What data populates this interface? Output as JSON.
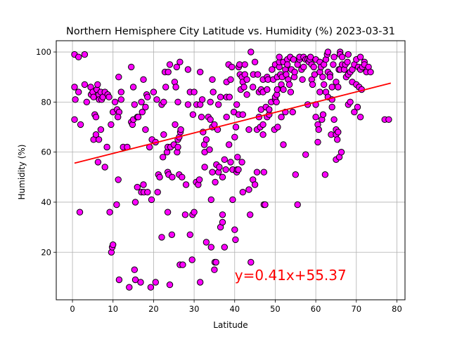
{
  "chart_data": {
    "type": "scatter",
    "title": "Northern Hemisphere City Latitude vs. Humidity (%) 2023-03-31",
    "xlabel": "Latitude",
    "ylabel": "Humidity (%)",
    "xlim": [
      -4,
      82
    ],
    "ylim": [
      1,
      104.5
    ],
    "xticks": [
      0,
      10,
      20,
      30,
      40,
      50,
      60,
      70,
      80
    ],
    "yticks": [
      20,
      40,
      60,
      80,
      100
    ],
    "grid": true,
    "colors": {
      "marker_fill": "#ff00ff",
      "marker_edge": "#000000",
      "regression": "#ff0000"
    },
    "regression": {
      "slope": 0.41,
      "intercept": 55.37,
      "x_range": [
        0.5,
        78.5
      ],
      "equation_text": "y=0.41x+55.37",
      "label_position_data": [
        40,
        10.5
      ]
    },
    "points": [
      [
        0.5,
        99
      ],
      [
        1.5,
        98
      ],
      [
        3,
        99
      ],
      [
        0.5,
        86
      ],
      [
        1.5,
        84
      ],
      [
        0.7,
        81
      ],
      [
        0.5,
        73
      ],
      [
        2,
        71
      ],
      [
        1.8,
        36
      ],
      [
        3,
        87
      ],
      [
        3.5,
        80
      ],
      [
        4.5,
        86
      ],
      [
        4.6,
        83
      ],
      [
        5,
        84
      ],
      [
        5.2,
        82
      ],
      [
        5.5,
        75
      ],
      [
        5.8,
        74
      ],
      [
        6,
        85
      ],
      [
        6.2,
        87
      ],
      [
        6.5,
        83
      ],
      [
        6.6,
        81
      ],
      [
        7,
        84
      ],
      [
        7.2,
        81
      ],
      [
        7.5,
        82
      ],
      [
        5.2,
        65
      ],
      [
        5.8,
        67
      ],
      [
        6.5,
        65
      ],
      [
        6.3,
        56
      ],
      [
        7,
        69
      ],
      [
        8,
        54
      ],
      [
        8.5,
        62
      ],
      [
        8,
        84
      ],
      [
        8.7,
        83
      ],
      [
        9.5,
        71
      ],
      [
        9,
        82
      ],
      [
        9.2,
        36
      ],
      [
        9.6,
        20
      ],
      [
        9.8,
        22
      ],
      [
        10,
        23
      ],
      [
        10,
        76
      ],
      [
        10.5,
        80
      ],
      [
        11,
        77
      ],
      [
        10.9,
        39
      ],
      [
        11.5,
        76
      ],
      [
        11.4,
        90
      ],
      [
        11.2,
        74
      ],
      [
        11.3,
        49
      ],
      [
        11.5,
        9
      ],
      [
        12,
        81
      ],
      [
        12,
        84
      ],
      [
        12.5,
        62
      ],
      [
        13.5,
        62
      ],
      [
        14,
        6
      ],
      [
        14.5,
        94
      ],
      [
        14.5,
        72
      ],
      [
        14.8,
        71
      ],
      [
        15,
        73
      ],
      [
        15,
        86
      ],
      [
        15.3,
        79
      ],
      [
        15.3,
        13
      ],
      [
        15.5,
        9
      ],
      [
        15.5,
        40
      ],
      [
        16,
        46
      ],
      [
        16,
        74
      ],
      [
        16.2,
        74
      ],
      [
        16.8,
        8
      ],
      [
        17,
        80
      ],
      [
        17.2,
        76
      ],
      [
        17.5,
        89
      ],
      [
        17,
        44
      ],
      [
        17.6,
        44
      ],
      [
        17.5,
        47
      ],
      [
        18,
        78
      ],
      [
        18,
        69
      ],
      [
        18.3,
        83
      ],
      [
        18.5,
        82
      ],
      [
        18.5,
        44
      ],
      [
        19,
        62
      ],
      [
        19.3,
        6
      ],
      [
        19.5,
        41
      ],
      [
        19.6,
        65
      ],
      [
        20,
        84
      ],
      [
        20.5,
        64
      ],
      [
        20.8,
        81
      ],
      [
        20.5,
        8
      ],
      [
        21,
        44
      ],
      [
        21.2,
        51
      ],
      [
        21.5,
        50
      ],
      [
        22,
        79
      ],
      [
        22,
        26
      ],
      [
        22.3,
        58
      ],
      [
        22.5,
        67
      ],
      [
        22.5,
        80
      ],
      [
        22.8,
        92
      ],
      [
        23,
        86
      ],
      [
        23.3,
        60
      ],
      [
        23.5,
        62
      ],
      [
        23.6,
        92
      ],
      [
        23.5,
        52
      ],
      [
        23.7,
        51
      ],
      [
        23.5,
        36
      ],
      [
        24,
        7
      ],
      [
        24,
        95
      ],
      [
        24.2,
        62
      ],
      [
        24.5,
        27
      ],
      [
        24.6,
        50
      ],
      [
        25,
        63
      ],
      [
        25.2,
        88
      ],
      [
        25.3,
        71
      ],
      [
        25.8,
        60
      ],
      [
        25.5,
        86
      ],
      [
        25.7,
        94
      ],
      [
        26,
        80
      ],
      [
        26,
        65
      ],
      [
        26.3,
        51
      ],
      [
        26.3,
        66
      ],
      [
        26,
        62
      ],
      [
        26.5,
        96
      ],
      [
        26.6,
        68
      ],
      [
        26.7,
        69
      ],
      [
        27,
        50
      ],
      [
        26.5,
        15
      ],
      [
        27.2,
        15
      ],
      [
        27.8,
        35
      ],
      [
        28,
        47
      ],
      [
        28.5,
        93
      ],
      [
        28.5,
        79
      ],
      [
        29,
        84
      ],
      [
        29,
        27
      ],
      [
        29.6,
        35
      ],
      [
        29.5,
        17
      ],
      [
        29.7,
        75
      ],
      [
        30,
        84
      ],
      [
        30,
        36
      ],
      [
        30.6,
        79
      ],
      [
        30.5,
        48
      ],
      [
        31,
        47
      ],
      [
        31.3,
        49
      ],
      [
        31.5,
        79
      ],
      [
        31.5,
        92
      ],
      [
        31.8,
        74
      ],
      [
        31.5,
        8
      ],
      [
        32,
        81
      ],
      [
        32.2,
        68
      ],
      [
        32.6,
        60
      ],
      [
        32.6,
        54
      ],
      [
        32.5,
        63
      ],
      [
        33,
        65
      ],
      [
        33,
        24
      ],
      [
        33.5,
        74
      ],
      [
        33.8,
        61
      ],
      [
        34,
        80
      ],
      [
        34.5,
        89
      ],
      [
        34.7,
        84
      ],
      [
        34.2,
        41
      ],
      [
        34,
        73
      ],
      [
        34.5,
        52
      ],
      [
        34.5,
        70
      ],
      [
        35,
        71
      ],
      [
        35.1,
        16
      ],
      [
        35.4,
        16
      ],
      [
        35,
        13
      ],
      [
        34.2,
        22
      ],
      [
        35.2,
        48
      ],
      [
        35.5,
        55
      ],
      [
        36,
        79
      ],
      [
        36,
        52
      ],
      [
        35.8,
        69
      ],
      [
        36.2,
        54
      ],
      [
        36.5,
        82
      ],
      [
        36.5,
        30
      ],
      [
        37,
        35
      ],
      [
        37,
        32
      ],
      [
        37,
        50
      ],
      [
        37.5,
        57
      ],
      [
        37.5,
        22
      ],
      [
        37.8,
        53
      ],
      [
        38,
        74
      ],
      [
        38,
        88
      ],
      [
        38.5,
        95
      ],
      [
        38.6,
        63
      ],
      [
        38,
        82
      ],
      [
        38.7,
        82
      ],
      [
        39,
        56
      ],
      [
        39.3,
        94
      ],
      [
        39,
        89
      ],
      [
        39.5,
        53
      ],
      [
        39.5,
        41
      ],
      [
        39.8,
        76
      ],
      [
        40,
        66
      ],
      [
        40,
        29
      ],
      [
        40.2,
        25
      ],
      [
        40.5,
        52
      ],
      [
        40.5,
        79
      ],
      [
        40.3,
        70
      ],
      [
        40.6,
        53
      ],
      [
        40.9,
        53
      ],
      [
        40.7,
        58
      ],
      [
        41,
        75
      ],
      [
        41,
        94
      ],
      [
        41.2,
        95
      ],
      [
        41.3,
        91
      ],
      [
        41.5,
        85
      ],
      [
        41.8,
        90
      ],
      [
        41.8,
        56
      ],
      [
        42,
        75
      ],
      [
        42,
        44
      ],
      [
        42,
        88
      ],
      [
        42.3,
        86
      ],
      [
        42.5,
        95
      ],
      [
        42.5,
        91
      ],
      [
        43,
        89
      ],
      [
        43,
        83
      ],
      [
        43.5,
        69
      ],
      [
        43.8,
        35
      ],
      [
        43.5,
        45
      ],
      [
        44,
        16
      ],
      [
        44,
        100
      ],
      [
        44.5,
        49
      ],
      [
        44.6,
        91
      ],
      [
        44.5,
        86
      ],
      [
        45,
        96
      ],
      [
        45,
        47
      ],
      [
        45.5,
        69
      ],
      [
        45.5,
        52
      ],
      [
        45.7,
        91
      ],
      [
        46,
        84
      ],
      [
        46,
        74
      ],
      [
        46.5,
        77
      ],
      [
        46.3,
        70
      ],
      [
        46.5,
        85
      ],
      [
        47,
        84
      ],
      [
        47,
        71
      ],
      [
        47,
        89
      ],
      [
        47,
        67
      ],
      [
        47.2,
        52
      ],
      [
        47.2,
        39
      ],
      [
        47.5,
        39
      ],
      [
        47.7,
        78
      ],
      [
        48,
        90
      ],
      [
        48,
        85
      ],
      [
        48.2,
        89
      ],
      [
        48,
        74
      ],
      [
        48.5,
        75
      ],
      [
        48.5,
        77
      ],
      [
        49,
        80
      ],
      [
        49.2,
        93
      ],
      [
        49.5,
        89
      ],
      [
        49.8,
        69
      ],
      [
        50,
        95
      ],
      [
        50,
        81
      ],
      [
        50,
        82
      ],
      [
        50.3,
        80
      ],
      [
        50.4,
        83
      ],
      [
        50.5,
        90
      ],
      [
        50.6,
        70
      ],
      [
        50.5,
        85
      ],
      [
        51,
        94
      ],
      [
        51,
        96
      ],
      [
        51,
        98
      ],
      [
        51.3,
        91
      ],
      [
        51.5,
        87
      ],
      [
        51.5,
        74
      ],
      [
        51.7,
        90
      ],
      [
        52,
        85
      ],
      [
        52,
        96
      ],
      [
        52,
        63
      ],
      [
        52.5,
        76
      ],
      [
        52.5,
        93
      ],
      [
        52.7,
        91
      ],
      [
        53,
        97
      ],
      [
        53,
        95
      ],
      [
        53.2,
        89
      ],
      [
        53.5,
        87
      ],
      [
        53.7,
        98
      ],
      [
        53.8,
        84
      ],
      [
        54,
        93
      ],
      [
        54.3,
        76
      ],
      [
        54.5,
        97
      ],
      [
        54.7,
        90
      ],
      [
        54.8,
        92
      ],
      [
        55,
        51
      ],
      [
        55.5,
        95
      ],
      [
        55.5,
        39
      ],
      [
        56,
        97
      ],
      [
        56,
        98
      ],
      [
        56.5,
        93
      ],
      [
        56.7,
        89
      ],
      [
        57,
        98
      ],
      [
        57,
        94
      ],
      [
        57.5,
        97
      ],
      [
        57.5,
        59
      ],
      [
        58,
        79
      ],
      [
        58,
        97
      ],
      [
        58.3,
        96
      ],
      [
        58.5,
        97
      ],
      [
        58.7,
        98
      ],
      [
        59,
        95
      ],
      [
        59,
        89
      ],
      [
        59.2,
        87
      ],
      [
        59.5,
        94
      ],
      [
        59.7,
        91
      ],
      [
        60,
        74
      ],
      [
        60,
        79
      ],
      [
        60,
        97
      ],
      [
        60.5,
        71
      ],
      [
        60.5,
        64
      ],
      [
        60.7,
        69
      ],
      [
        61,
        92
      ],
      [
        61,
        84
      ],
      [
        61,
        96
      ],
      [
        61.3,
        94
      ],
      [
        61.5,
        73
      ],
      [
        61.7,
        90
      ],
      [
        61.8,
        75
      ],
      [
        62,
        95
      ],
      [
        62,
        87
      ],
      [
        62.3,
        51
      ],
      [
        62.5,
        97
      ],
      [
        62.5,
        84
      ],
      [
        62.8,
        99
      ],
      [
        63,
        92
      ],
      [
        63,
        100
      ],
      [
        63,
        82
      ],
      [
        63.5,
        91
      ],
      [
        63.5,
        90
      ],
      [
        63.8,
        67
      ],
      [
        64,
        86
      ],
      [
        64,
        81
      ],
      [
        64,
        78
      ],
      [
        64.3,
        95
      ],
      [
        64.5,
        98
      ],
      [
        64.5,
        73
      ],
      [
        65,
        88
      ],
      [
        65,
        69
      ],
      [
        65,
        67
      ],
      [
        65,
        57
      ],
      [
        65.3,
        65
      ],
      [
        65.5,
        86
      ],
      [
        65.5,
        68
      ],
      [
        65.7,
        93
      ],
      [
        65.8,
        58
      ],
      [
        66,
        100
      ],
      [
        66,
        99
      ],
      [
        66,
        93
      ],
      [
        66.3,
        60
      ],
      [
        66.5,
        95
      ],
      [
        66.5,
        98
      ],
      [
        67,
        93
      ],
      [
        67.3,
        95
      ],
      [
        67.5,
        90
      ],
      [
        67.8,
        96
      ],
      [
        68,
        91
      ],
      [
        68,
        79
      ],
      [
        68,
        99
      ],
      [
        68.5,
        92
      ],
      [
        68.5,
        80
      ],
      [
        69,
        93
      ],
      [
        69,
        88
      ],
      [
        69.5,
        95
      ],
      [
        69.5,
        76
      ],
      [
        70,
        87
      ],
      [
        70,
        97
      ],
      [
        70.3,
        78
      ],
      [
        70.5,
        94
      ],
      [
        70.7,
        86
      ],
      [
        71,
        98
      ],
      [
        71,
        93
      ],
      [
        71,
        74
      ],
      [
        71.3,
        85
      ],
      [
        71.5,
        94
      ],
      [
        72,
        96
      ],
      [
        72,
        95
      ],
      [
        72.5,
        92
      ],
      [
        73,
        94
      ],
      [
        73.5,
        92
      ],
      [
        77,
        73
      ],
      [
        78,
        73
      ]
    ]
  }
}
